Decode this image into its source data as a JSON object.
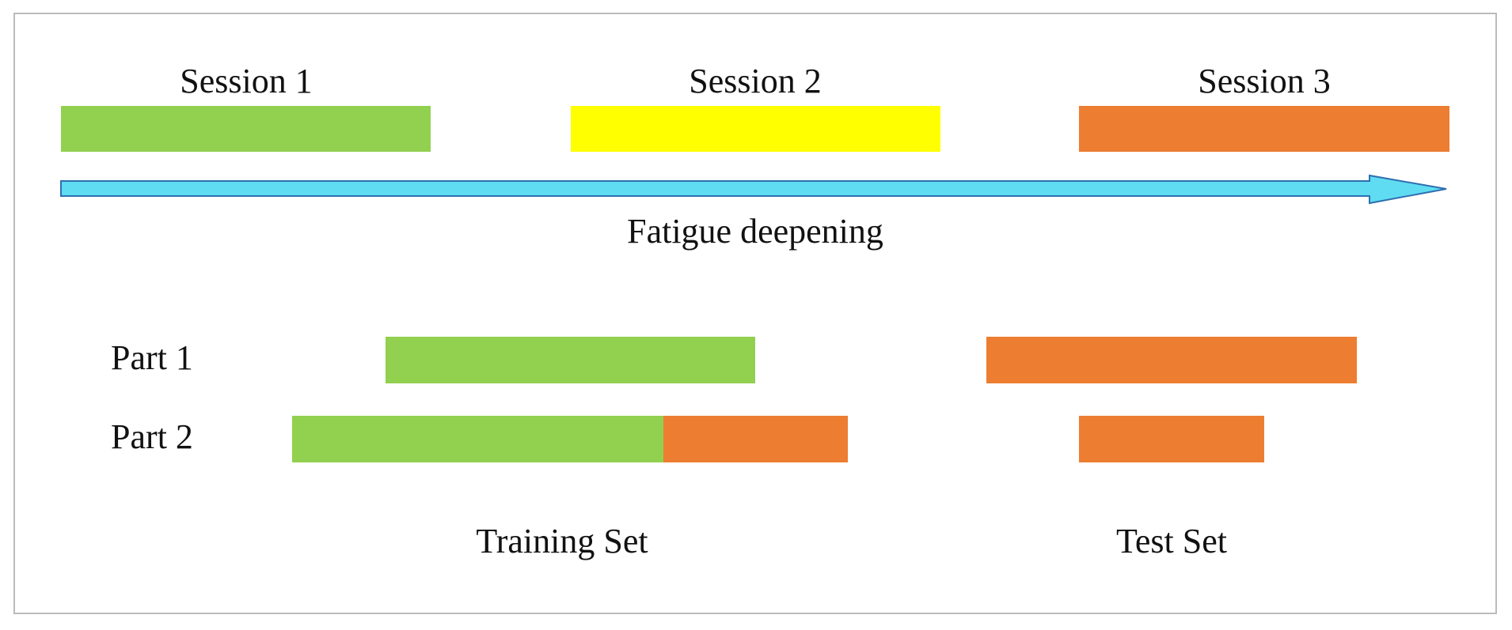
{
  "sessions": [
    "Session 1",
    "Session 2",
    "Session 3"
  ],
  "arrow_label": "Fatigue deepening",
  "parts": [
    "Part 1",
    "Part 2"
  ],
  "sets": [
    "Training Set",
    "Test Set"
  ]
}
